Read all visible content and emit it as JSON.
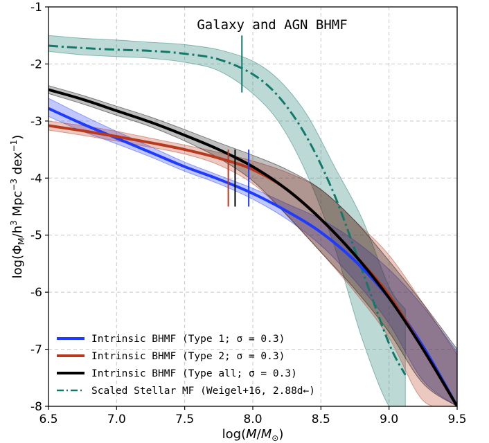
{
  "chart_data": {
    "type": "line",
    "title": "Galaxy and AGN BHMF",
    "xlabel_parts": {
      "pre": "log(",
      "italic1": "M",
      "mid": "/",
      "italic2": "M",
      "sub": "⊙",
      "post": ")"
    },
    "ylabel_parts": {
      "pre": "log(Φ",
      "sub1": "M",
      "mid": "/h",
      "sup1": "3",
      "mid2": " Mpc",
      "sup2": "−3",
      "post": " dex",
      "sup3": "−1",
      "end": ")"
    },
    "xlim": [
      6.5,
      9.5
    ],
    "ylim": [
      -8,
      -1
    ],
    "xticks": [
      "6.5",
      "7.0",
      "7.5",
      "8.0",
      "8.5",
      "9.0",
      "9.5"
    ],
    "yticks": [
      "-1",
      "-2",
      "-3",
      "-4",
      "-5",
      "-6",
      "-7",
      "-8"
    ],
    "grid": true,
    "legend_position": "lower-left",
    "series": [
      {
        "name": "Intrinsic BHMF (Type 1; σ = 0.3)",
        "color": "#1f3bff",
        "style": "solid",
        "x": [
          6.5,
          6.75,
          7.0,
          7.25,
          7.5,
          7.75,
          8.0,
          8.25,
          8.5,
          8.75,
          9.0,
          9.25,
          9.5
        ],
        "y": [
          -2.78,
          -3.05,
          -3.3,
          -3.55,
          -3.8,
          -4.02,
          -4.27,
          -4.58,
          -4.95,
          -5.45,
          -6.1,
          -6.95,
          -8.0
        ],
        "band_lower": [
          -2.92,
          -3.18,
          -3.4,
          -3.63,
          -3.88,
          -4.1,
          -4.37,
          -4.72,
          -5.18,
          -5.8,
          -6.55,
          -7.55,
          -8.0
        ],
        "band_upper": [
          -2.6,
          -2.9,
          -3.18,
          -3.45,
          -3.72,
          -3.95,
          -4.18,
          -4.45,
          -4.72,
          -5.1,
          -5.6,
          -6.25,
          -7.05
        ],
        "marker_x": 7.97
      },
      {
        "name": "Intrinsic BHMF (Type 2; σ = 0.3)",
        "color": "#b83a1e",
        "style": "solid",
        "x": [
          6.5,
          6.75,
          7.0,
          7.25,
          7.5,
          7.75,
          8.0,
          8.25,
          8.5,
          8.75,
          9.0,
          9.25,
          9.5
        ],
        "y": [
          -3.08,
          -3.17,
          -3.27,
          -3.38,
          -3.5,
          -3.65,
          -3.85,
          -4.2,
          -4.72,
          -5.35,
          -6.05,
          -7.0,
          -8.0
        ],
        "band_lower": [
          -3.16,
          -3.25,
          -3.35,
          -3.46,
          -3.58,
          -3.77,
          -4.1,
          -4.65,
          -5.3,
          -6.0,
          -6.8,
          -7.9,
          -8.0
        ],
        "band_upper": [
          -3.0,
          -3.08,
          -3.18,
          -3.3,
          -3.42,
          -3.55,
          -3.7,
          -3.9,
          -4.2,
          -4.75,
          -5.35,
          -6.2,
          -7.1
        ],
        "marker_x": 7.82
      },
      {
        "name": "Intrinsic BHMF (Type all; σ = 0.3)",
        "color": "#000000",
        "style": "solid",
        "x": [
          6.5,
          6.75,
          7.0,
          7.25,
          7.5,
          7.75,
          8.0,
          8.25,
          8.5,
          8.75,
          9.0,
          9.25,
          9.5
        ],
        "y": [
          -2.45,
          -2.62,
          -2.82,
          -3.02,
          -3.25,
          -3.5,
          -3.8,
          -4.2,
          -4.72,
          -5.35,
          -6.1,
          -7.0,
          -8.0
        ],
        "band_lower": [
          -2.52,
          -2.7,
          -2.9,
          -3.1,
          -3.35,
          -3.65,
          -4.05,
          -4.65,
          -5.3,
          -5.95,
          -6.7,
          -7.6,
          -8.0
        ],
        "band_upper": [
          -2.38,
          -2.55,
          -2.74,
          -2.93,
          -3.15,
          -3.38,
          -3.6,
          -3.85,
          -4.2,
          -4.75,
          -5.45,
          -6.2,
          -7.0
        ],
        "marker_x": 7.87
      },
      {
        "name": "Scaled Stellar MF (Weigel+16, 2.88d←)",
        "color": "#12786a",
        "style": "dashdot",
        "x": [
          6.5,
          6.75,
          7.0,
          7.25,
          7.5,
          7.75,
          8.0,
          8.2,
          8.4,
          8.6,
          8.8,
          9.0,
          9.12
        ],
        "y": [
          -1.68,
          -1.72,
          -1.75,
          -1.77,
          -1.82,
          -1.92,
          -2.18,
          -2.6,
          -3.3,
          -4.3,
          -5.6,
          -6.9,
          -7.45
        ],
        "band_lower": [
          -1.78,
          -1.84,
          -1.87,
          -1.9,
          -1.97,
          -2.12,
          -2.52,
          -3.05,
          -3.95,
          -5.2,
          -6.8,
          -8.0,
          -8.0
        ],
        "band_upper": [
          -1.5,
          -1.55,
          -1.58,
          -1.62,
          -1.66,
          -1.75,
          -1.95,
          -2.3,
          -2.9,
          -3.8,
          -4.7,
          -5.9,
          -6.3
        ],
        "marker_x": 7.92
      }
    ],
    "markers_y_range": [
      -4.5,
      -3.5
    ],
    "stellar_marker_y_range": [
      -2.5,
      -1.5
    ]
  }
}
